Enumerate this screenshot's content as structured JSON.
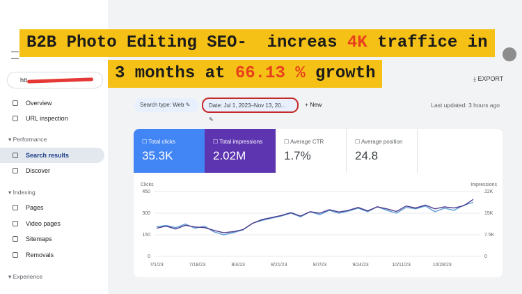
{
  "banner": {
    "line1": [
      "B2B Photo Editing SEO-  increas ",
      "4K",
      " traffice in"
    ],
    "line2": [
      "3 months at ",
      "66.13 %",
      " growth"
    ]
  },
  "sidebar": {
    "property": "htt",
    "items": [
      {
        "kind": "item",
        "label": "Overview"
      },
      {
        "kind": "item",
        "label": "URL inspection"
      },
      {
        "kind": "section",
        "label": "Performance"
      },
      {
        "kind": "item",
        "label": "Search results",
        "active": true
      },
      {
        "kind": "item",
        "label": "Discover"
      },
      {
        "kind": "section",
        "label": "Indexing"
      },
      {
        "kind": "item",
        "label": "Pages"
      },
      {
        "kind": "item",
        "label": "Video pages"
      },
      {
        "kind": "item",
        "label": "Sitemaps"
      },
      {
        "kind": "item",
        "label": "Removals"
      },
      {
        "kind": "section",
        "label": "Experience"
      }
    ]
  },
  "toolbar": {
    "export": "EXPORT",
    "filters": [
      "Search type: Web",
      "Date: Jul 1, 2023–Nov 13, 20..."
    ],
    "new": "New",
    "last_updated": "Last updated: 3 hours ago"
  },
  "metrics": [
    {
      "label": "Total clicks",
      "value": "35.3K",
      "color": "#4285f4"
    },
    {
      "label": "Total impressions",
      "value": "2.02M",
      "color": "#5e35b1"
    },
    {
      "label": "Average CTR",
      "value": "1.7%"
    },
    {
      "label": "Average position",
      "value": "24.8"
    }
  ],
  "chart": {
    "type": "line",
    "ylabel": "Clicks",
    "y2label": "Impressions",
    "x_labels": [
      "7/1/23",
      "7/18/23",
      "8/4/23",
      "8/21/23",
      "9/7/23",
      "9/24/23",
      "10/11/23",
      "10/28/23"
    ],
    "ylim": [
      0,
      450
    ],
    "yticks": [
      0,
      150,
      300,
      450
    ],
    "y2lim": [
      0,
      22500
    ],
    "y2ticks": [
      0,
      {
        "value": 7500,
        "label": "7.5K"
      },
      {
        "value": 15000,
        "label": "15K"
      },
      {
        "value": 22500,
        "label": "22K"
      }
    ],
    "series": [
      {
        "name": "Total clicks",
        "color": "#5b9bd5",
        "values": [
          205,
          215,
          200,
          225,
          195,
          210,
          170,
          150,
          165,
          185,
          230,
          250,
          265,
          280,
          300,
          275,
          310,
          290,
          320,
          300,
          315,
          335,
          310,
          345,
          320,
          300,
          340,
          330,
          350,
          310,
          335,
          320,
          355,
          375
        ]
      },
      {
        "name": "Total impressions",
        "color": "#4a3a8c",
        "axis": "y2",
        "values": [
          9800,
          10500,
          9500,
          10800,
          10200,
          10000,
          9000,
          8200,
          8600,
          9300,
          11500,
          12800,
          13500,
          14200,
          15200,
          14000,
          15500,
          15000,
          16200,
          15400,
          16000,
          17000,
          15800,
          17200,
          16500,
          15600,
          17500,
          16800,
          17800,
          16500,
          17200,
          16800,
          17600,
          19800
        ]
      }
    ]
  }
}
